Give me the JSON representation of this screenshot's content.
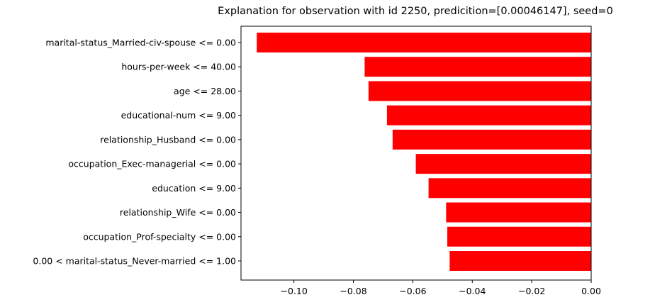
{
  "chart_data": {
    "type": "bar",
    "orientation": "horizontal",
    "title": "Explanation for observation with id 2250, predicition=[0.00046147], seed=0",
    "xlabel": "",
    "ylabel": "",
    "categories": [
      "marital-status_Married-civ-spouse <= 0.00",
      "hours-per-week <= 40.00",
      "age <= 28.00",
      "educational-num <= 9.00",
      "relationship_Husband <= 0.00",
      "occupation_Exec-managerial <= 0.00",
      "education <= 9.00",
      "relationship_Wife <= 0.00",
      "occupation_Prof-specialty <= 0.00",
      "0.00 < marital-status_Never-married <= 1.00"
    ],
    "values": [
      -0.1125,
      -0.0762,
      -0.0749,
      -0.0687,
      -0.0668,
      -0.059,
      -0.0547,
      -0.0488,
      -0.0484,
      -0.0476
    ],
    "xlim": [
      -0.1178,
      0.0
    ],
    "xticks": [
      -0.1,
      -0.08,
      -0.06,
      -0.04,
      -0.02,
      0.0
    ],
    "xtick_labels": [
      "−0.10",
      "−0.08",
      "−0.06",
      "−0.04",
      "−0.02",
      "0.00"
    ],
    "bar_color": "#ff0000",
    "grid": false,
    "legend": "none"
  }
}
